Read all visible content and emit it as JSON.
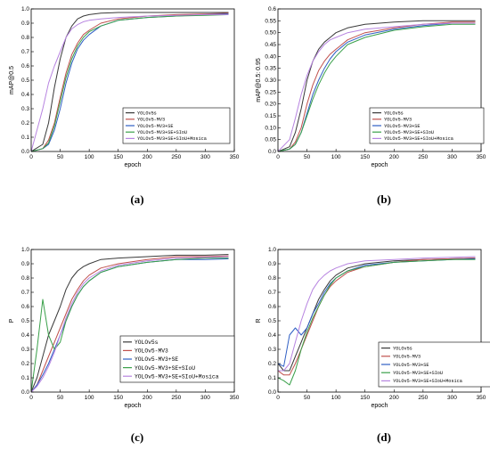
{
  "colors": {
    "YOLOv5s": "#3a3a3a",
    "YOLOv5-MV3": "#c0504d",
    "YOLOv5-MV3+SE": "#2f5fc4",
    "YOLOv5-MV3+SE+SIoU": "#3aa04a",
    "YOLOv5-MV3+SE+SIoU+Mosica": "#b784e0"
  },
  "chart_data": [
    {
      "type": "line",
      "caption": "(a)",
      "xlabel": "epoch",
      "ylabel": "mAP@0.5",
      "xlim": [
        0,
        350
      ],
      "ylim": [
        0,
        1.0
      ],
      "xticks": [
        "0",
        "50",
        "100",
        "150",
        "200",
        "250",
        "300",
        "350"
      ],
      "yticks": [
        "0.0",
        "0.1",
        "0.2",
        "0.3",
        "0.4",
        "0.5",
        "0.6",
        "0.7",
        "0.8",
        "0.9",
        "1.0"
      ],
      "legend_position": "lower-right",
      "series": [
        {
          "name": "YOLOv5s",
          "x": [
            0,
            20,
            30,
            40,
            50,
            60,
            70,
            80,
            90,
            100,
            120,
            150,
            200,
            250,
            300,
            340
          ],
          "y": [
            0,
            0.05,
            0.2,
            0.45,
            0.65,
            0.8,
            0.88,
            0.93,
            0.95,
            0.96,
            0.97,
            0.975,
            0.975,
            0.975,
            0.975,
            0.975
          ]
        },
        {
          "name": "YOLOv5-MV3",
          "x": [
            0,
            20,
            30,
            40,
            50,
            60,
            70,
            80,
            90,
            100,
            120,
            150,
            200,
            250,
            300,
            340
          ],
          "y": [
            0,
            0.02,
            0.08,
            0.2,
            0.38,
            0.55,
            0.68,
            0.76,
            0.82,
            0.85,
            0.9,
            0.93,
            0.95,
            0.96,
            0.965,
            0.97
          ]
        },
        {
          "name": "YOLOv5-MV3+SE",
          "x": [
            0,
            20,
            30,
            40,
            50,
            60,
            70,
            80,
            90,
            100,
            120,
            150,
            200,
            250,
            300,
            340
          ],
          "y": [
            0,
            0.02,
            0.05,
            0.15,
            0.3,
            0.48,
            0.62,
            0.72,
            0.78,
            0.82,
            0.88,
            0.92,
            0.94,
            0.95,
            0.96,
            0.965
          ]
        },
        {
          "name": "YOLOv5-MV3+SE+SIoU",
          "x": [
            0,
            20,
            30,
            40,
            50,
            60,
            70,
            80,
            90,
            100,
            120,
            150,
            200,
            250,
            300,
            340
          ],
          "y": [
            0,
            0.02,
            0.06,
            0.18,
            0.35,
            0.52,
            0.65,
            0.74,
            0.8,
            0.84,
            0.88,
            0.92,
            0.94,
            0.95,
            0.955,
            0.96
          ]
        },
        {
          "name": "YOLOv5-MV3+SE+SIoU+Mosica",
          "x": [
            0,
            20,
            30,
            40,
            50,
            60,
            70,
            80,
            90,
            100,
            120,
            150,
            200,
            250,
            300,
            340
          ],
          "y": [
            0,
            0.3,
            0.48,
            0.6,
            0.7,
            0.8,
            0.86,
            0.89,
            0.91,
            0.92,
            0.93,
            0.94,
            0.95,
            0.955,
            0.96,
            0.96
          ]
        }
      ]
    },
    {
      "type": "line",
      "caption": "(b)",
      "xlabel": "epoch",
      "ylabel": "mAP@0.5: 0.95",
      "xlim": [
        0,
        350
      ],
      "ylim": [
        0,
        0.6
      ],
      "xticks": [
        "0",
        "50",
        "100",
        "150",
        "200",
        "250",
        "300",
        "350"
      ],
      "yticks": [
        "0.0",
        "0.05",
        "0.10",
        "0.15",
        "0.20",
        "0.25",
        "0.30",
        "0.35",
        "0.40",
        "0.45",
        "0.50",
        "0.55",
        "0.6"
      ],
      "legend_position": "lower-right",
      "series": [
        {
          "name": "YOLOv5s",
          "x": [
            0,
            20,
            30,
            40,
            50,
            60,
            70,
            80,
            90,
            100,
            120,
            150,
            200,
            250,
            300,
            340
          ],
          "y": [
            0,
            0.02,
            0.08,
            0.18,
            0.3,
            0.38,
            0.43,
            0.46,
            0.48,
            0.5,
            0.52,
            0.535,
            0.545,
            0.55,
            0.55,
            0.55
          ]
        },
        {
          "name": "YOLOv5-MV3",
          "x": [
            0,
            20,
            30,
            40,
            50,
            60,
            70,
            80,
            90,
            100,
            120,
            150,
            200,
            250,
            300,
            340
          ],
          "y": [
            0,
            0.01,
            0.04,
            0.1,
            0.2,
            0.28,
            0.34,
            0.38,
            0.41,
            0.43,
            0.47,
            0.5,
            0.52,
            0.535,
            0.545,
            0.545
          ]
        },
        {
          "name": "YOLOv5-MV3+SE",
          "x": [
            0,
            20,
            30,
            40,
            50,
            60,
            70,
            80,
            90,
            100,
            120,
            150,
            200,
            250,
            300,
            340
          ],
          "y": [
            0,
            0.01,
            0.03,
            0.08,
            0.16,
            0.24,
            0.3,
            0.35,
            0.39,
            0.42,
            0.46,
            0.49,
            0.515,
            0.53,
            0.54,
            0.54
          ]
        },
        {
          "name": "YOLOv5-MV3+SE+SIoU",
          "x": [
            0,
            20,
            30,
            40,
            50,
            60,
            70,
            80,
            90,
            100,
            120,
            150,
            200,
            250,
            300,
            340
          ],
          "y": [
            0,
            0.01,
            0.03,
            0.08,
            0.15,
            0.22,
            0.28,
            0.33,
            0.37,
            0.4,
            0.45,
            0.48,
            0.51,
            0.525,
            0.535,
            0.535
          ]
        },
        {
          "name": "YOLOv5-MV3+SE+SIoU+Mosica",
          "x": [
            0,
            20,
            30,
            40,
            50,
            60,
            70,
            80,
            90,
            100,
            120,
            150,
            200,
            250,
            300,
            340
          ],
          "y": [
            0,
            0.05,
            0.14,
            0.24,
            0.32,
            0.38,
            0.42,
            0.45,
            0.47,
            0.48,
            0.5,
            0.515,
            0.525,
            0.535,
            0.54,
            0.54
          ]
        }
      ]
    },
    {
      "type": "line",
      "caption": "(c)",
      "xlabel": "epoch",
      "ylabel": "P",
      "xlim": [
        0,
        350
      ],
      "ylim": [
        0,
        1.0
      ],
      "xticks": [
        "0",
        "50",
        "100",
        "150",
        "200",
        "250",
        "300",
        "350"
      ],
      "yticks": [
        "0.0",
        "0.1",
        "0.2",
        "0.3",
        "0.4",
        "0.5",
        "0.6",
        "0.7",
        "0.8",
        "0.9",
        "1.0"
      ],
      "legend_position": "lower-right",
      "series": [
        {
          "name": "YOLOv5s",
          "x": [
            0,
            10,
            20,
            30,
            40,
            50,
            60,
            70,
            80,
            90,
            100,
            120,
            150,
            200,
            250,
            300,
            340
          ],
          "y": [
            0,
            0.1,
            0.25,
            0.4,
            0.5,
            0.6,
            0.72,
            0.8,
            0.85,
            0.88,
            0.9,
            0.93,
            0.94,
            0.95,
            0.96,
            0.96,
            0.965
          ]
        },
        {
          "name": "YOLOv5-MV3",
          "x": [
            0,
            10,
            20,
            30,
            40,
            50,
            60,
            70,
            80,
            90,
            100,
            120,
            150,
            200,
            250,
            300,
            340
          ],
          "y": [
            0,
            0.05,
            0.15,
            0.25,
            0.35,
            0.45,
            0.55,
            0.65,
            0.72,
            0.78,
            0.82,
            0.87,
            0.9,
            0.93,
            0.95,
            0.95,
            0.955
          ]
        },
        {
          "name": "YOLOv5-MV3+SE",
          "x": [
            0,
            10,
            20,
            30,
            40,
            50,
            60,
            70,
            80,
            90,
            100,
            120,
            150,
            200,
            250,
            300,
            340
          ],
          "y": [
            0,
            0.05,
            0.12,
            0.2,
            0.3,
            0.4,
            0.5,
            0.6,
            0.68,
            0.74,
            0.78,
            0.84,
            0.88,
            0.91,
            0.93,
            0.93,
            0.935
          ]
        },
        {
          "name": "YOLOv5-MV3+SE+SIoU",
          "x": [
            0,
            10,
            20,
            30,
            40,
            50,
            60,
            70,
            80,
            90,
            100,
            120,
            150,
            200,
            250,
            300,
            340
          ],
          "y": [
            0,
            0.3,
            0.65,
            0.4,
            0.3,
            0.35,
            0.5,
            0.6,
            0.68,
            0.74,
            0.78,
            0.84,
            0.88,
            0.91,
            0.93,
            0.94,
            0.94
          ]
        },
        {
          "name": "YOLOv5-MV3+SE+SIoU+Mosica",
          "x": [
            0,
            10,
            20,
            30,
            40,
            50,
            60,
            70,
            80,
            90,
            100,
            120,
            150,
            200,
            250,
            300,
            340
          ],
          "y": [
            0,
            0.04,
            0.1,
            0.18,
            0.28,
            0.4,
            0.52,
            0.62,
            0.7,
            0.76,
            0.8,
            0.85,
            0.89,
            0.92,
            0.94,
            0.945,
            0.95
          ]
        }
      ]
    },
    {
      "type": "line",
      "caption": "(d)",
      "xlabel": "epoch",
      "ylabel": "R",
      "xlim": [
        0,
        350
      ],
      "ylim": [
        0,
        1.0
      ],
      "xticks": [
        "0",
        "50",
        "100",
        "150",
        "200",
        "250",
        "300",
        "350"
      ],
      "yticks": [
        "0.0",
        "0.1",
        "0.2",
        "0.3",
        "0.4",
        "0.5",
        "0.6",
        "0.7",
        "0.8",
        "0.9",
        "1.0"
      ],
      "legend_position": "lower-right",
      "series": [
        {
          "name": "YOLOv5s",
          "x": [
            0,
            10,
            20,
            30,
            40,
            50,
            60,
            70,
            80,
            90,
            100,
            120,
            150,
            200,
            250,
            300,
            340
          ],
          "y": [
            0.2,
            0.15,
            0.15,
            0.25,
            0.35,
            0.45,
            0.55,
            0.65,
            0.72,
            0.78,
            0.82,
            0.87,
            0.9,
            0.92,
            0.93,
            0.935,
            0.94
          ]
        },
        {
          "name": "YOLOv5-MV3",
          "x": [
            0,
            10,
            20,
            30,
            40,
            50,
            60,
            70,
            80,
            90,
            100,
            120,
            150,
            200,
            250,
            300,
            340
          ],
          "y": [
            0.15,
            0.12,
            0.12,
            0.2,
            0.3,
            0.4,
            0.5,
            0.6,
            0.68,
            0.74,
            0.78,
            0.84,
            0.88,
            0.91,
            0.93,
            0.935,
            0.94
          ]
        },
        {
          "name": "YOLOv5-MV3+SE",
          "x": [
            0,
            10,
            20,
            30,
            40,
            50,
            60,
            70,
            80,
            90,
            100,
            120,
            150,
            200,
            250,
            300,
            340
          ],
          "y": [
            0.2,
            0.18,
            0.4,
            0.45,
            0.4,
            0.45,
            0.55,
            0.62,
            0.7,
            0.76,
            0.8,
            0.85,
            0.89,
            0.91,
            0.92,
            0.93,
            0.935
          ]
        },
        {
          "name": "YOLOv5-MV3+SE+SIoU",
          "x": [
            0,
            10,
            20,
            30,
            40,
            50,
            60,
            70,
            80,
            90,
            100,
            120,
            150,
            200,
            250,
            300,
            340
          ],
          "y": [
            0.1,
            0.08,
            0.05,
            0.15,
            0.3,
            0.42,
            0.52,
            0.6,
            0.68,
            0.75,
            0.8,
            0.85,
            0.88,
            0.91,
            0.92,
            0.93,
            0.93
          ]
        },
        {
          "name": "YOLOv5-MV3+SE+SIoU+Mosica",
          "x": [
            0,
            10,
            20,
            30,
            40,
            50,
            60,
            70,
            80,
            90,
            100,
            120,
            150,
            200,
            250,
            300,
            340
          ],
          "y": [
            0.15,
            0.15,
            0.2,
            0.35,
            0.5,
            0.62,
            0.72,
            0.78,
            0.82,
            0.85,
            0.87,
            0.9,
            0.92,
            0.93,
            0.94,
            0.945,
            0.95
          ]
        }
      ]
    }
  ]
}
